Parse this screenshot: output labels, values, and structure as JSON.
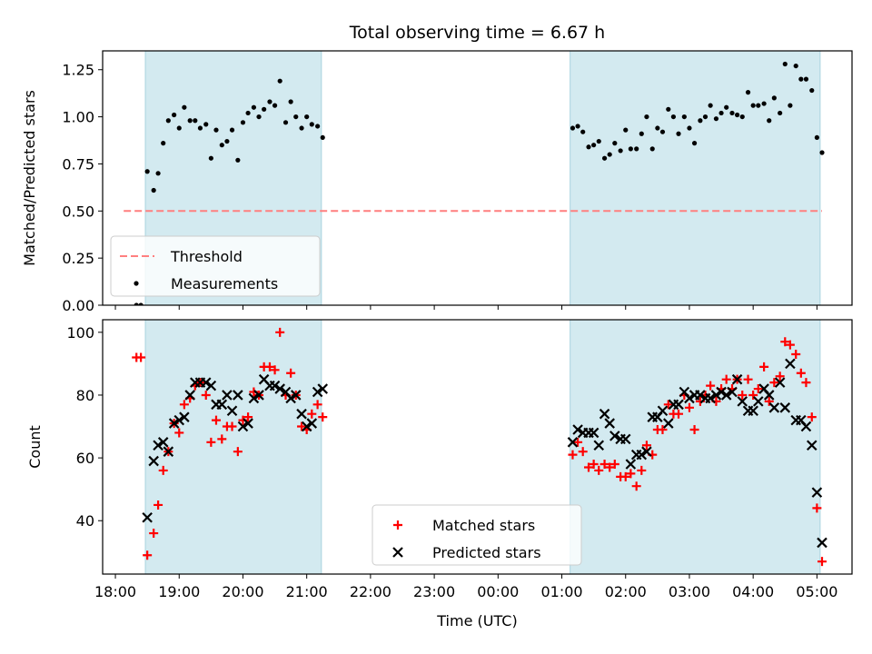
{
  "chart_data": [
    {
      "type": "scatter",
      "title": "Total observing time = 6.67 h",
      "ylabel": "Matched/Predicted stars",
      "xlabel": "",
      "ylim": [
        0,
        1.35
      ],
      "xlim": [
        "18:00",
        "05:00"
      ],
      "x_axis": "time (UTC), hours; values after midnight continue past 24",
      "yticks": [
        "0.00",
        "0.25",
        "0.50",
        "0.75",
        "1.00",
        "1.25"
      ],
      "observing_windows": [
        [
          18.47,
          21.23
        ],
        [
          25.13,
          29.05
        ]
      ],
      "threshold": 0.5,
      "threshold_color": "#ff7f7f",
      "shade_color": "#d3eaf0",
      "legend_position": "lower-left",
      "legend": [
        "Threshold",
        "Measurements"
      ],
      "series": [
        {
          "name": "Measurements",
          "color": "#000000",
          "points": [
            [
              18.33,
              0.0
            ],
            [
              18.4,
              0.0
            ],
            [
              18.5,
              0.71
            ],
            [
              18.6,
              0.61
            ],
            [
              18.67,
              0.7
            ],
            [
              18.75,
              0.86
            ],
            [
              18.83,
              0.98
            ],
            [
              18.92,
              1.01
            ],
            [
              19.0,
              0.94
            ],
            [
              19.08,
              1.05
            ],
            [
              19.17,
              0.98
            ],
            [
              19.25,
              0.98
            ],
            [
              19.33,
              0.94
            ],
            [
              19.42,
              0.96
            ],
            [
              19.5,
              0.78
            ],
            [
              19.58,
              0.93
            ],
            [
              19.67,
              0.85
            ],
            [
              19.75,
              0.87
            ],
            [
              19.83,
              0.93
            ],
            [
              19.92,
              0.77
            ],
            [
              20.0,
              0.97
            ],
            [
              20.08,
              1.02
            ],
            [
              20.17,
              1.05
            ],
            [
              20.25,
              1.0
            ],
            [
              20.33,
              1.04
            ],
            [
              20.42,
              1.08
            ],
            [
              20.5,
              1.06
            ],
            [
              20.58,
              1.19
            ],
            [
              20.67,
              0.97
            ],
            [
              20.75,
              1.08
            ],
            [
              20.83,
              1.0
            ],
            [
              20.92,
              0.94
            ],
            [
              21.0,
              1.0
            ],
            [
              21.08,
              0.96
            ],
            [
              21.17,
              0.95
            ],
            [
              21.25,
              0.89
            ],
            [
              25.17,
              0.94
            ],
            [
              25.25,
              0.95
            ],
            [
              25.33,
              0.92
            ],
            [
              25.42,
              0.84
            ],
            [
              25.5,
              0.85
            ],
            [
              25.58,
              0.87
            ],
            [
              25.67,
              0.78
            ],
            [
              25.75,
              0.8
            ],
            [
              25.83,
              0.86
            ],
            [
              25.92,
              0.82
            ],
            [
              26.0,
              0.93
            ],
            [
              26.08,
              0.83
            ],
            [
              26.17,
              0.83
            ],
            [
              26.25,
              0.91
            ],
            [
              26.33,
              1.0
            ],
            [
              26.42,
              0.83
            ],
            [
              26.5,
              0.94
            ],
            [
              26.58,
              0.92
            ],
            [
              26.67,
              1.04
            ],
            [
              26.75,
              1.0
            ],
            [
              26.83,
              0.91
            ],
            [
              26.92,
              1.0
            ],
            [
              27.0,
              0.94
            ],
            [
              27.08,
              0.86
            ],
            [
              27.17,
              0.98
            ],
            [
              27.25,
              1.0
            ],
            [
              27.33,
              1.06
            ],
            [
              27.42,
              0.99
            ],
            [
              27.5,
              1.02
            ],
            [
              27.58,
              1.05
            ],
            [
              27.67,
              1.02
            ],
            [
              27.75,
              1.01
            ],
            [
              27.83,
              1.0
            ],
            [
              27.92,
              1.13
            ],
            [
              28.0,
              1.06
            ],
            [
              28.08,
              1.06
            ],
            [
              28.17,
              1.07
            ],
            [
              28.25,
              0.98
            ],
            [
              28.33,
              1.1
            ],
            [
              28.42,
              1.02
            ],
            [
              28.5,
              1.28
            ],
            [
              28.58,
              1.06
            ],
            [
              28.67,
              1.27
            ],
            [
              28.75,
              1.2
            ],
            [
              28.83,
              1.2
            ],
            [
              28.92,
              1.14
            ],
            [
              29.0,
              0.89
            ],
            [
              29.08,
              0.81
            ]
          ]
        }
      ]
    },
    {
      "type": "scatter",
      "title": "",
      "ylabel": "Count",
      "xlabel": "Time (UTC)",
      "ylim": [
        23,
        104
      ],
      "xlim": [
        "18:00",
        "05:00"
      ],
      "x_axis": "time (UTC), hours; values after midnight continue past 24",
      "yticks": [
        "40",
        "60",
        "80",
        "100"
      ],
      "xticks": [
        "18:00",
        "19:00",
        "20:00",
        "21:00",
        "22:00",
        "23:00",
        "00:00",
        "01:00",
        "02:00",
        "03:00",
        "04:00",
        "05:00"
      ],
      "observing_windows": [
        [
          18.47,
          21.23
        ],
        [
          25.13,
          29.05
        ]
      ],
      "shade_color": "#d3eaf0",
      "legend_position": "lower-center",
      "legend": [
        "Matched stars",
        "Predicted stars"
      ],
      "series": [
        {
          "name": "Matched stars",
          "color": "#ff0000",
          "points": [
            [
              18.33,
              92
            ],
            [
              18.4,
              92
            ],
            [
              18.5,
              29
            ],
            [
              18.6,
              36
            ],
            [
              18.67,
              45
            ],
            [
              18.75,
              56
            ],
            [
              18.83,
              62
            ],
            [
              18.92,
              71
            ],
            [
              19.0,
              68
            ],
            [
              19.08,
              77
            ],
            [
              19.17,
              79
            ],
            [
              19.25,
              83
            ],
            [
              19.33,
              84
            ],
            [
              19.42,
              80
            ],
            [
              19.5,
              65
            ],
            [
              19.58,
              72
            ],
            [
              19.67,
              66
            ],
            [
              19.75,
              70
            ],
            [
              19.83,
              70
            ],
            [
              19.92,
              62
            ],
            [
              20.0,
              72
            ],
            [
              20.08,
              73
            ],
            [
              20.17,
              81
            ],
            [
              20.25,
              80
            ],
            [
              20.33,
              89
            ],
            [
              20.42,
              89
            ],
            [
              20.5,
              88
            ],
            [
              20.58,
              100
            ],
            [
              20.67,
              80
            ],
            [
              20.75,
              87
            ],
            [
              20.83,
              80
            ],
            [
              20.92,
              70
            ],
            [
              21.0,
              69
            ],
            [
              21.08,
              74
            ],
            [
              21.17,
              77
            ],
            [
              21.25,
              73
            ],
            [
              25.17,
              61
            ],
            [
              25.25,
              65
            ],
            [
              25.33,
              62
            ],
            [
              25.42,
              57
            ],
            [
              25.5,
              58
            ],
            [
              25.58,
              56
            ],
            [
              25.67,
              58
            ],
            [
              25.75,
              57
            ],
            [
              25.83,
              58
            ],
            [
              25.92,
              54
            ],
            [
              26.0,
              54
            ],
            [
              26.08,
              55
            ],
            [
              26.17,
              51
            ],
            [
              26.25,
              56
            ],
            [
              26.33,
              64
            ],
            [
              26.42,
              61
            ],
            [
              26.5,
              69
            ],
            [
              26.58,
              69
            ],
            [
              26.67,
              77
            ],
            [
              26.75,
              74
            ],
            [
              26.83,
              74
            ],
            [
              26.92,
              80
            ],
            [
              27.0,
              76
            ],
            [
              27.08,
              69
            ],
            [
              27.17,
              78
            ],
            [
              27.25,
              80
            ],
            [
              27.33,
              83
            ],
            [
              27.42,
              78
            ],
            [
              27.5,
              82
            ],
            [
              27.58,
              85
            ],
            [
              27.67,
              82
            ],
            [
              27.75,
              85
            ],
            [
              27.83,
              80
            ],
            [
              27.92,
              85
            ],
            [
              28.0,
              80
            ],
            [
              28.08,
              82
            ],
            [
              28.17,
              89
            ],
            [
              28.25,
              78
            ],
            [
              28.33,
              84
            ],
            [
              28.42,
              86
            ],
            [
              28.5,
              97
            ],
            [
              28.58,
              96
            ],
            [
              28.67,
              93
            ],
            [
              28.75,
              87
            ],
            [
              28.83,
              84
            ],
            [
              28.92,
              73
            ],
            [
              29.0,
              44
            ],
            [
              29.08,
              27
            ]
          ]
        },
        {
          "name": "Predicted stars",
          "color": "#000000",
          "points": [
            [
              18.5,
              41
            ],
            [
              18.6,
              59
            ],
            [
              18.67,
              64
            ],
            [
              18.75,
              65
            ],
            [
              18.83,
              62
            ],
            [
              18.92,
              71
            ],
            [
              19.0,
              72
            ],
            [
              19.08,
              73
            ],
            [
              19.17,
              80
            ],
            [
              19.25,
              84
            ],
            [
              19.33,
              84
            ],
            [
              19.42,
              84
            ],
            [
              19.5,
              83
            ],
            [
              19.58,
              77
            ],
            [
              19.67,
              77
            ],
            [
              19.75,
              80
            ],
            [
              19.83,
              75
            ],
            [
              19.92,
              80
            ],
            [
              20.0,
              70
            ],
            [
              20.08,
              71
            ],
            [
              20.17,
              79
            ],
            [
              20.25,
              80
            ],
            [
              20.33,
              85
            ],
            [
              20.42,
              83
            ],
            [
              20.5,
              83
            ],
            [
              20.58,
              82
            ],
            [
              20.67,
              81
            ],
            [
              20.75,
              79
            ],
            [
              20.83,
              80
            ],
            [
              20.92,
              74
            ],
            [
              21.0,
              70
            ],
            [
              21.08,
              71
            ],
            [
              21.17,
              81
            ],
            [
              21.25,
              82
            ],
            [
              25.17,
              65
            ],
            [
              25.25,
              69
            ],
            [
              25.33,
              68
            ],
            [
              25.42,
              68
            ],
            [
              25.5,
              68
            ],
            [
              25.58,
              64
            ],
            [
              25.67,
              74
            ],
            [
              25.75,
              71
            ],
            [
              25.83,
              67
            ],
            [
              25.92,
              66
            ],
            [
              26.0,
              66
            ],
            [
              26.08,
              58
            ],
            [
              26.17,
              61
            ],
            [
              26.25,
              61
            ],
            [
              26.33,
              62
            ],
            [
              26.42,
              73
            ],
            [
              26.5,
              73
            ],
            [
              26.58,
              75
            ],
            [
              26.67,
              71
            ],
            [
              26.75,
              77
            ],
            [
              26.83,
              77
            ],
            [
              26.92,
              81
            ],
            [
              27.0,
              79
            ],
            [
              27.08,
              80
            ],
            [
              27.17,
              80
            ],
            [
              27.25,
              79
            ],
            [
              27.33,
              79
            ],
            [
              27.42,
              80
            ],
            [
              27.5,
              81
            ],
            [
              27.58,
              80
            ],
            [
              27.67,
              81
            ],
            [
              27.75,
              85
            ],
            [
              27.83,
              78
            ],
            [
              27.92,
              75
            ],
            [
              28.0,
              75
            ],
            [
              28.08,
              78
            ],
            [
              28.17,
              82
            ],
            [
              28.25,
              80
            ],
            [
              28.33,
              76
            ],
            [
              28.42,
              84
            ],
            [
              28.5,
              76
            ],
            [
              28.58,
              90
            ],
            [
              28.67,
              72
            ],
            [
              28.75,
              72
            ],
            [
              28.83,
              70
            ],
            [
              28.92,
              64
            ],
            [
              29.0,
              49
            ],
            [
              29.08,
              33
            ]
          ]
        }
      ]
    }
  ]
}
